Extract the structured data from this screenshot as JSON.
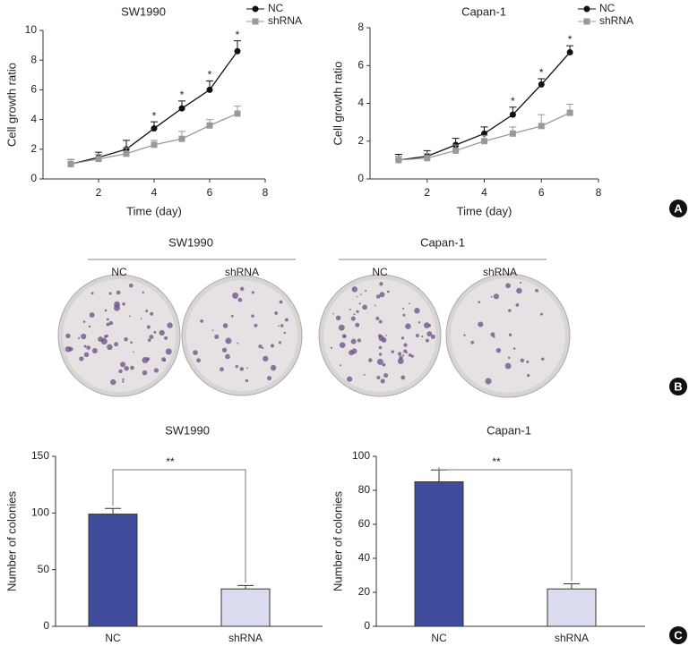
{
  "chart_data": [
    {
      "type": "line",
      "title": "SW1990",
      "x_label": "Time (day)",
      "y_label": "Cell growth ratio",
      "x": [
        1,
        2,
        3,
        4,
        5,
        6,
        7
      ],
      "xlim": [
        0,
        8
      ],
      "xticks": [
        2,
        4,
        6,
        8
      ],
      "ylim": [
        0,
        10
      ],
      "yticks": [
        0,
        2,
        4,
        6,
        8,
        10
      ],
      "series": [
        {
          "name": "NC",
          "color": "#111111",
          "marker": "circle",
          "values": [
            1,
            1.45,
            2.0,
            3.4,
            4.75,
            6.0,
            8.6
          ],
          "errors": [
            0.3,
            0.35,
            0.6,
            0.45,
            0.5,
            0.6,
            0.7
          ],
          "significance": [
            null,
            null,
            null,
            "*",
            "*",
            "*",
            "*"
          ]
        },
        {
          "name": "shRNA",
          "color": "#999999",
          "marker": "square",
          "values": [
            1,
            1.35,
            1.7,
            2.3,
            2.7,
            3.6,
            4.4
          ],
          "errors": [
            0.3,
            0.3,
            0.4,
            0.3,
            0.5,
            0.4,
            0.5
          ]
        }
      ]
    },
    {
      "type": "line",
      "title": "Capan-1",
      "x_label": "Time (day)",
      "y_label": "Cell growth ratio",
      "x": [
        1,
        2,
        3,
        4,
        5,
        6,
        7
      ],
      "xlim": [
        0,
        8
      ],
      "xticks": [
        2,
        4,
        6,
        8
      ],
      "ylim": [
        0,
        8
      ],
      "yticks": [
        0,
        2,
        4,
        6,
        8
      ],
      "series": [
        {
          "name": "NC",
          "color": "#111111",
          "marker": "circle",
          "values": [
            1,
            1.2,
            1.8,
            2.4,
            3.4,
            5.0,
            6.7
          ],
          "errors": [
            0.3,
            0.3,
            0.35,
            0.35,
            0.4,
            0.3,
            0.35
          ],
          "significance": [
            null,
            null,
            null,
            null,
            "*",
            "*",
            "*"
          ]
        },
        {
          "name": "shRNA",
          "color": "#999999",
          "marker": "square",
          "values": [
            1,
            1.1,
            1.5,
            2.0,
            2.4,
            2.8,
            3.5
          ],
          "errors": [
            0.2,
            0.25,
            0.3,
            0.3,
            0.35,
            0.6,
            0.45
          ]
        }
      ]
    },
    {
      "type": "bar",
      "title": "SW1990",
      "y_label": "Number of colonies",
      "categories": [
        "NC",
        "shRNA"
      ],
      "values": [
        99,
        33
      ],
      "errors": [
        5,
        3
      ],
      "colors": [
        "#3f4c9b",
        "#dcdcf0"
      ],
      "ylim": [
        0,
        150
      ],
      "yticks": [
        0,
        50,
        100,
        150
      ],
      "significance": "**"
    },
    {
      "type": "bar",
      "title": "Capan-1",
      "y_label": "Number of colonies",
      "categories": [
        "NC",
        "shRNA"
      ],
      "values": [
        85,
        22
      ],
      "errors": [
        7,
        3
      ],
      "colors": [
        "#3f4c9b",
        "#dcdcf0"
      ],
      "ylim": [
        0,
        100
      ],
      "yticks": [
        0,
        20,
        40,
        60,
        80,
        100
      ],
      "significance": "**"
    }
  ],
  "panel_labels": [
    "A",
    "B",
    "C"
  ],
  "photos": [
    {
      "title": "SW1990",
      "groups": [
        "NC",
        "shRNA"
      ]
    },
    {
      "title": "Capan-1",
      "groups": [
        "NC",
        "shRNA"
      ]
    }
  ]
}
